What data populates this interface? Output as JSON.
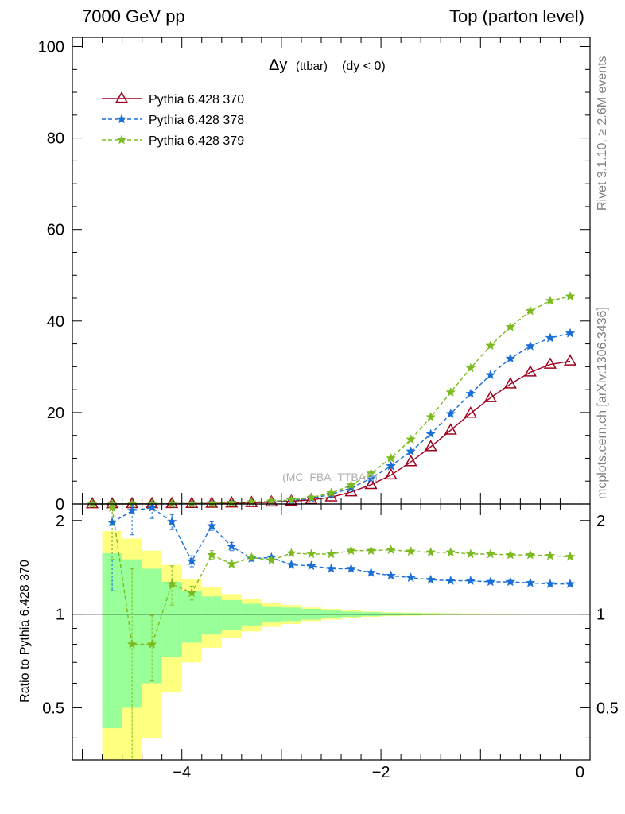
{
  "header": {
    "left": "7000 GeV pp",
    "right": "Top (parton level)"
  },
  "side_labels": {
    "rivet": "Rivet 3.1.10, ≥ 2.6M events",
    "mcplots": "mcplots.cern.ch [arXiv:1306.3436]"
  },
  "chart_data": [
    {
      "type": "line",
      "panel": "main",
      "title": "Δy (ttbar) (dy < 0)",
      "title_main": "Δy",
      "title_sub": "(ttbar)",
      "title_cut": "(dy < 0)",
      "watermark": "(MC_FBA_TTBAR)",
      "xlim": [
        -5.1,
        0.1
      ],
      "ylim": [
        0,
        102
      ],
      "y_ticks": [
        0,
        20,
        40,
        60,
        80,
        100
      ],
      "y_tick_labels": [
        "0",
        "20",
        "40",
        "60",
        "80",
        "100"
      ],
      "grid": false,
      "legend_position": "top-left",
      "x": [
        -4.9,
        -4.7,
        -4.5,
        -4.3,
        -4.1,
        -3.9,
        -3.7,
        -3.5,
        -3.3,
        -3.1,
        -2.9,
        -2.7,
        -2.5,
        -2.3,
        -2.1,
        -1.9,
        -1.7,
        -1.5,
        -1.3,
        -1.1,
        -0.9,
        -0.7,
        -0.5,
        -0.3,
        -0.1
      ],
      "series": [
        {
          "name": "Pythia 6.428 370",
          "color": "#a0001e",
          "marker": "triangle",
          "dash": "solid",
          "values": [
            0.0,
            0.01,
            0.02,
            0.03,
            0.05,
            0.08,
            0.12,
            0.18,
            0.27,
            0.4,
            0.6,
            0.9,
            1.5,
            2.6,
            4.2,
            6.3,
            9.2,
            12.5,
            16.1,
            19.8,
            23.2,
            26.2,
            28.8,
            30.5,
            31.2
          ]
        },
        {
          "name": "Pythia 6.428 378",
          "color": "#1a6fd6",
          "marker": "star",
          "dash": "dashed",
          "values": [
            0.0,
            0.02,
            0.04,
            0.06,
            0.08,
            0.12,
            0.22,
            0.3,
            0.4,
            0.55,
            0.8,
            1.2,
            2.1,
            3.5,
            5.6,
            8.3,
            11.5,
            15.3,
            19.7,
            24.1,
            28.2,
            31.8,
            34.5,
            36.3,
            37.3
          ]
        },
        {
          "name": "Pythia 6.428 379",
          "color": "#7cba1f",
          "marker": "star",
          "dash": "dashed",
          "values": [
            0.0,
            0.02,
            0.02,
            0.02,
            0.06,
            0.09,
            0.18,
            0.26,
            0.4,
            0.6,
            0.9,
            1.4,
            2.4,
            4.1,
            6.7,
            10.0,
            14.1,
            19.0,
            24.4,
            29.7,
            34.6,
            38.7,
            42.2,
            44.4,
            45.4
          ]
        }
      ]
    },
    {
      "type": "line",
      "panel": "ratio",
      "ylabel": "Ratio to Pythia 6.428 370",
      "xlim": [
        -5.1,
        0.1
      ],
      "ylim": [
        0.34,
        2.26
      ],
      "x_ticks": [
        -4,
        -2,
        0
      ],
      "x_tick_labels": [
        "−4",
        "−2",
        "0"
      ],
      "y_ticks": [
        0.5,
        1,
        2
      ],
      "y_tick_labels": [
        "0.5",
        "1",
        "2"
      ],
      "reference_line": 1,
      "band_edges": [
        -4.8,
        -4.6,
        -4.4,
        -4.2,
        -4.0,
        -3.8,
        -3.6,
        -3.4,
        -3.2,
        -3.0,
        -2.8,
        -2.6,
        -2.4,
        -2.2,
        -2.0,
        -1.8,
        -1.6,
        -1.4,
        -1.2,
        -1.0,
        -0.8,
        -0.6,
        -0.4,
        -0.2,
        0.0
      ],
      "band_inner": [
        0.57,
        0.5,
        0.4,
        0.27,
        0.19,
        0.14,
        0.11,
        0.08,
        0.06,
        0.05,
        0.04,
        0.03,
        0.02,
        0.015,
        0.01,
        0.008,
        0.006,
        0.005,
        0.004,
        0.003,
        0.003,
        0.002,
        0.002,
        0.002
      ],
      "band_outer": [
        0.85,
        0.75,
        0.6,
        0.44,
        0.3,
        0.22,
        0.16,
        0.12,
        0.09,
        0.07,
        0.05,
        0.04,
        0.03,
        0.02,
        0.015,
        0.012,
        0.009,
        0.007,
        0.006,
        0.005,
        0.004,
        0.003,
        0.003,
        0.003
      ],
      "band_colors": {
        "inner": "#99ff99",
        "outer": "#ffff80"
      },
      "x": [
        -4.7,
        -4.5,
        -4.3,
        -4.1,
        -3.9,
        -3.7,
        -3.5,
        -3.3,
        -3.1,
        -2.9,
        -2.7,
        -2.5,
        -2.3,
        -2.1,
        -1.9,
        -1.7,
        -1.5,
        -1.3,
        -1.1,
        -0.9,
        -0.7,
        -0.5,
        -0.3,
        -0.1
      ],
      "series": [
        {
          "name": "Pythia 6.428 378",
          "color": "#1a6fd6",
          "marker": "star",
          "dash": "dashed",
          "values": [
            1.97,
            2.15,
            2.2,
            1.98,
            1.48,
            1.92,
            1.65,
            1.51,
            1.52,
            1.44,
            1.43,
            1.4,
            1.4,
            1.36,
            1.33,
            1.31,
            1.29,
            1.28,
            1.28,
            1.27,
            1.27,
            1.26,
            1.25,
            1.25
          ],
          "errors": [
            0.78,
            0.35,
            0.17,
            0.11,
            0.06,
            0.06,
            0.05,
            0.03,
            0.02,
            0.02,
            0.015,
            0.012,
            0.01,
            0.01,
            0.008,
            0.007,
            0.006,
            0.005,
            0.005,
            0.004,
            0.004,
            0.004,
            0.003,
            0.003
          ]
        },
        {
          "name": "Pythia 6.428 379",
          "color": "#7cba1f",
          "marker": "star",
          "dash": "dashed",
          "values": [
            2.2,
            0.8,
            0.8,
            1.25,
            1.17,
            1.55,
            1.45,
            1.52,
            1.49,
            1.57,
            1.56,
            1.56,
            1.6,
            1.6,
            1.61,
            1.59,
            1.58,
            1.58,
            1.56,
            1.56,
            1.55,
            1.55,
            1.54,
            1.53
          ],
          "errors": [
            0.7,
            0.6,
            0.19,
            0.18,
            0.06,
            0.05,
            0.04,
            0.03,
            0.02,
            0.02,
            0.015,
            0.012,
            0.01,
            0.01,
            0.008,
            0.007,
            0.006,
            0.005,
            0.005,
            0.004,
            0.004,
            0.004,
            0.003,
            0.003
          ]
        }
      ]
    }
  ]
}
